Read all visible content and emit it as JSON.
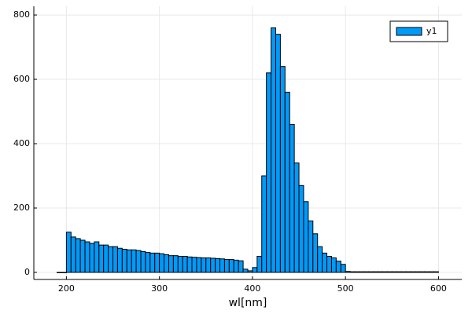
{
  "chart_data": {
    "type": "histogram",
    "xlabel": "wl[nm]",
    "bins": [
      190,
      195,
      200,
      205,
      210,
      215,
      220,
      225,
      230,
      235,
      240,
      245,
      250,
      255,
      260,
      265,
      270,
      275,
      280,
      285,
      290,
      295,
      300,
      305,
      310,
      315,
      320,
      325,
      330,
      335,
      340,
      345,
      350,
      355,
      360,
      365,
      370,
      375,
      380,
      385,
      390,
      395,
      400,
      405,
      410,
      415,
      420,
      425,
      430,
      435,
      440,
      445,
      450,
      455,
      460,
      465,
      470,
      475,
      480,
      485,
      490,
      495,
      500,
      505,
      510,
      515,
      520,
      525,
      530,
      535,
      540,
      545,
      550,
      555,
      560,
      565,
      570,
      575,
      580,
      585,
      590,
      595,
      600
    ],
    "series": [
      {
        "name": "y1",
        "color": "#009af9",
        "values": [
          0,
          0,
          125,
          110,
          105,
          100,
          95,
          90,
          95,
          85,
          85,
          80,
          80,
          75,
          72,
          70,
          70,
          68,
          65,
          62,
          60,
          60,
          58,
          55,
          52,
          52,
          50,
          50,
          48,
          47,
          46,
          45,
          45,
          44,
          43,
          42,
          40,
          40,
          38,
          36,
          10,
          5,
          15,
          50,
          300,
          620,
          760,
          740,
          640,
          560,
          460,
          340,
          270,
          220,
          160,
          120,
          80,
          60,
          50,
          45,
          35,
          25,
          3,
          2,
          2,
          2,
          2,
          2,
          2,
          2,
          2,
          2,
          2,
          2,
          2,
          2,
          2,
          2,
          2,
          2,
          2,
          2
        ]
      }
    ],
    "xlim": [
      165,
      625
    ],
    "ylim": [
      -22,
      827
    ],
    "xticks": [
      200,
      300,
      400,
      500,
      600
    ],
    "yticks": [
      0,
      200,
      400,
      600,
      800
    ],
    "grid": true,
    "legend": "top-right"
  }
}
